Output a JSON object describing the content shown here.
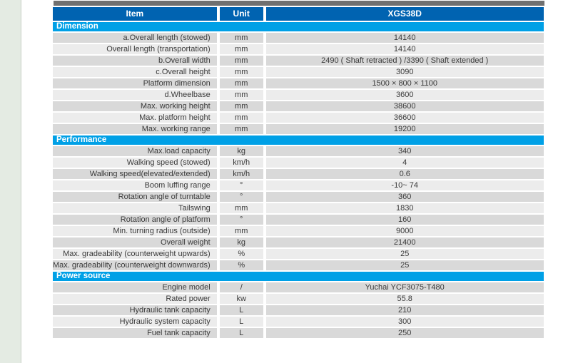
{
  "page": {
    "background_color": "#ffffff",
    "left_strip_color": "#e4ebe3",
    "top_bar_color": "#707070"
  },
  "table": {
    "columns": [
      "Item",
      "Unit",
      "XGS38D"
    ],
    "colors": {
      "header_background": "#0063b1",
      "section_background": "#00a0e6",
      "row_dark": "#d9d9d9",
      "row_light": "#ececec",
      "text": "#3a3a3a",
      "header_text": "#ffffff"
    },
    "sections": [
      {
        "title": "Dimension",
        "rows": [
          [
            "a.Overall length (stowed)",
            "mm",
            "14140"
          ],
          [
            "Overall length (transportation)",
            "mm",
            "14140"
          ],
          [
            "b.Overall width",
            "mm",
            "2490 ( Shaft retracted ) /3390 ( Shaft extended )"
          ],
          [
            "c.Overall height",
            "mm",
            "3090"
          ],
          [
            "Platform dimension",
            "mm",
            "1500 × 800 × 1100"
          ],
          [
            "d.Wheelbase",
            "mm",
            "3600"
          ],
          [
            "Max. working height",
            "mm",
            "38600"
          ],
          [
            "Max. platform height",
            "mm",
            "36600"
          ],
          [
            "Max. working range",
            "mm",
            "19200"
          ]
        ]
      },
      {
        "title": "Performance",
        "rows": [
          [
            "Max.load capacity",
            "kg",
            "340"
          ],
          [
            "Walking speed (stowed)",
            "km/h",
            "4"
          ],
          [
            "Walking speed(elevated/extended)",
            "km/h",
            "0.6"
          ],
          [
            "Boom luffing range",
            "°",
            "-10~ 74"
          ],
          [
            "Rotation angle of turntable",
            "°",
            "360"
          ],
          [
            "Tailswing",
            "mm",
            "1830"
          ],
          [
            "Rotation angle of platform",
            "°",
            "160"
          ],
          [
            "Min. turning radius (outside)",
            "mm",
            "9000"
          ],
          [
            "Overall weight",
            "kg",
            "21400"
          ],
          [
            "Max. gradeability (counterweight upwards)",
            "%",
            "25"
          ],
          [
            "Max. gradeability (counterweight downwards)",
            "%",
            "25"
          ]
        ]
      },
      {
        "title": "Power source",
        "rows": [
          [
            "Engine model",
            "/",
            "Yuchai YCF3075-T480"
          ],
          [
            "Rated power",
            "kw",
            "55.8"
          ],
          [
            "Hydraulic tank capacity",
            "L",
            "210"
          ],
          [
            "Hydraulic system capacity",
            "L",
            "300"
          ],
          [
            "Fuel tank capacity",
            "L",
            "250"
          ]
        ]
      }
    ]
  }
}
